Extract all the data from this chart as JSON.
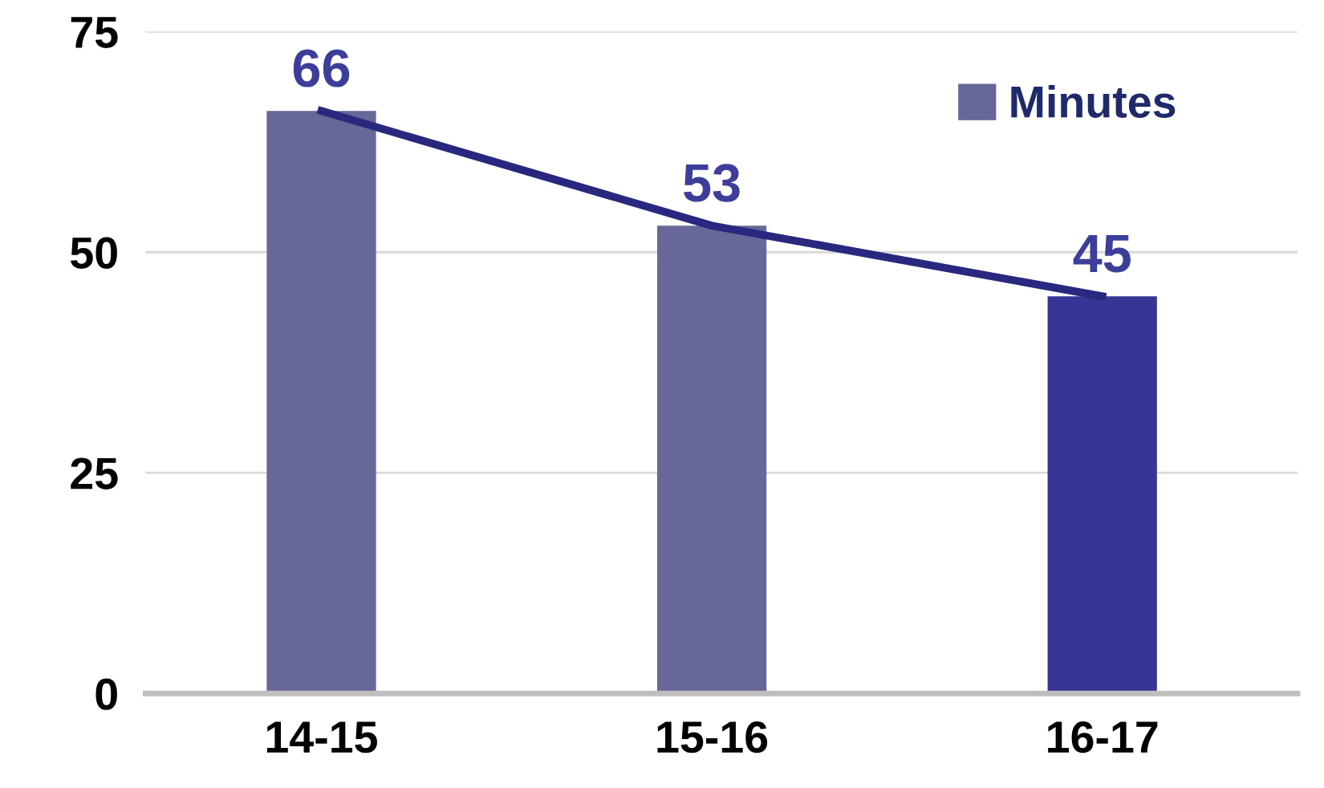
{
  "chart_data": {
    "type": "bar",
    "categories": [
      "14-15",
      "15-16",
      "16-17"
    ],
    "series": [
      {
        "name": "Minutes",
        "color": "#676799",
        "colors": [
          "#676799",
          "#676799",
          "#363696"
        ],
        "values": [
          66,
          53,
          45
        ],
        "value_labels": [
          "66",
          "53",
          "45"
        ]
      },
      {
        "type": "line",
        "color": "#28287e",
        "values": [
          66,
          53,
          45
        ],
        "marker": "none",
        "line_style": "solid"
      }
    ],
    "ylim": [
      0,
      75
    ],
    "yticks": [
      0,
      25,
      50,
      75
    ],
    "grid": "y",
    "legend": "top right"
  }
}
